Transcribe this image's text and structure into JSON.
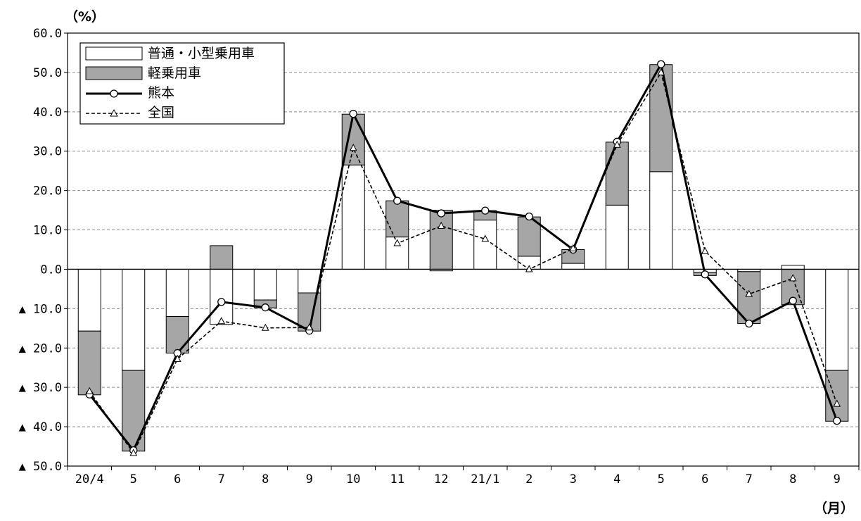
{
  "chart_data": {
    "type": "bar",
    "y_unit": "（%）",
    "x_unit": "（月）",
    "ylim": [
      -50,
      60
    ],
    "ytick_values": [
      60,
      50,
      40,
      30,
      20,
      10,
      0,
      -10,
      -20,
      -30,
      -40,
      -50
    ],
    "ytick_labels": [
      "60.0",
      "50.0",
      "40.0",
      "30.0",
      "20.0",
      "10.0",
      "0.0",
      "▲ 10.0",
      "▲ 20.0",
      "▲ 30.0",
      "▲ 40.0",
      "▲ 50.0"
    ],
    "grid": true,
    "legend_position": "top-left",
    "categories": [
      "20/4",
      "5",
      "6",
      "7",
      "8",
      "9",
      "10",
      "11",
      "12",
      "21/1",
      "2",
      "3",
      "4",
      "5",
      "6",
      "7",
      "8",
      "9"
    ],
    "bar_series": [
      {
        "name": "普通・小型乗用車",
        "color": "#ffffff",
        "values": [
          -15.7,
          -25.7,
          -12.0,
          -14.0,
          -7.8,
          -6.0,
          26.5,
          8.2,
          -0.4,
          12.5,
          3.3,
          1.5,
          16.3,
          24.8,
          -0.8,
          -0.6,
          1.0,
          -25.7
        ]
      },
      {
        "name": "軽乗用車",
        "color": "#a6a6a6",
        "values": [
          -16.2,
          -20.5,
          -9.3,
          6.0,
          -2.0,
          -9.7,
          12.9,
          9.2,
          15.0,
          2.4,
          10.0,
          3.5,
          16.0,
          27.2,
          -0.8,
          -13.2,
          -9.0,
          -12.9
        ]
      }
    ],
    "line_series": [
      {
        "name": "熊本",
        "style": "solid",
        "marker": "circle",
        "color": "#000000",
        "values": [
          -31.8,
          -46.0,
          -21.3,
          -8.3,
          -9.7,
          -15.6,
          39.5,
          17.4,
          14.2,
          14.9,
          13.4,
          5.0,
          32.4,
          52.1,
          -1.3,
          -13.8,
          -8.0,
          -38.5
        ]
      },
      {
        "name": "全国",
        "style": "dashed",
        "marker": "triangle",
        "color": "#000000",
        "values": [
          -31.0,
          -46.7,
          -22.8,
          -13.2,
          -14.9,
          -14.8,
          30.8,
          6.6,
          11.0,
          7.7,
          0.0,
          5.3,
          31.6,
          50.0,
          4.6,
          -6.3,
          -2.3,
          -34.2
        ]
      }
    ]
  }
}
